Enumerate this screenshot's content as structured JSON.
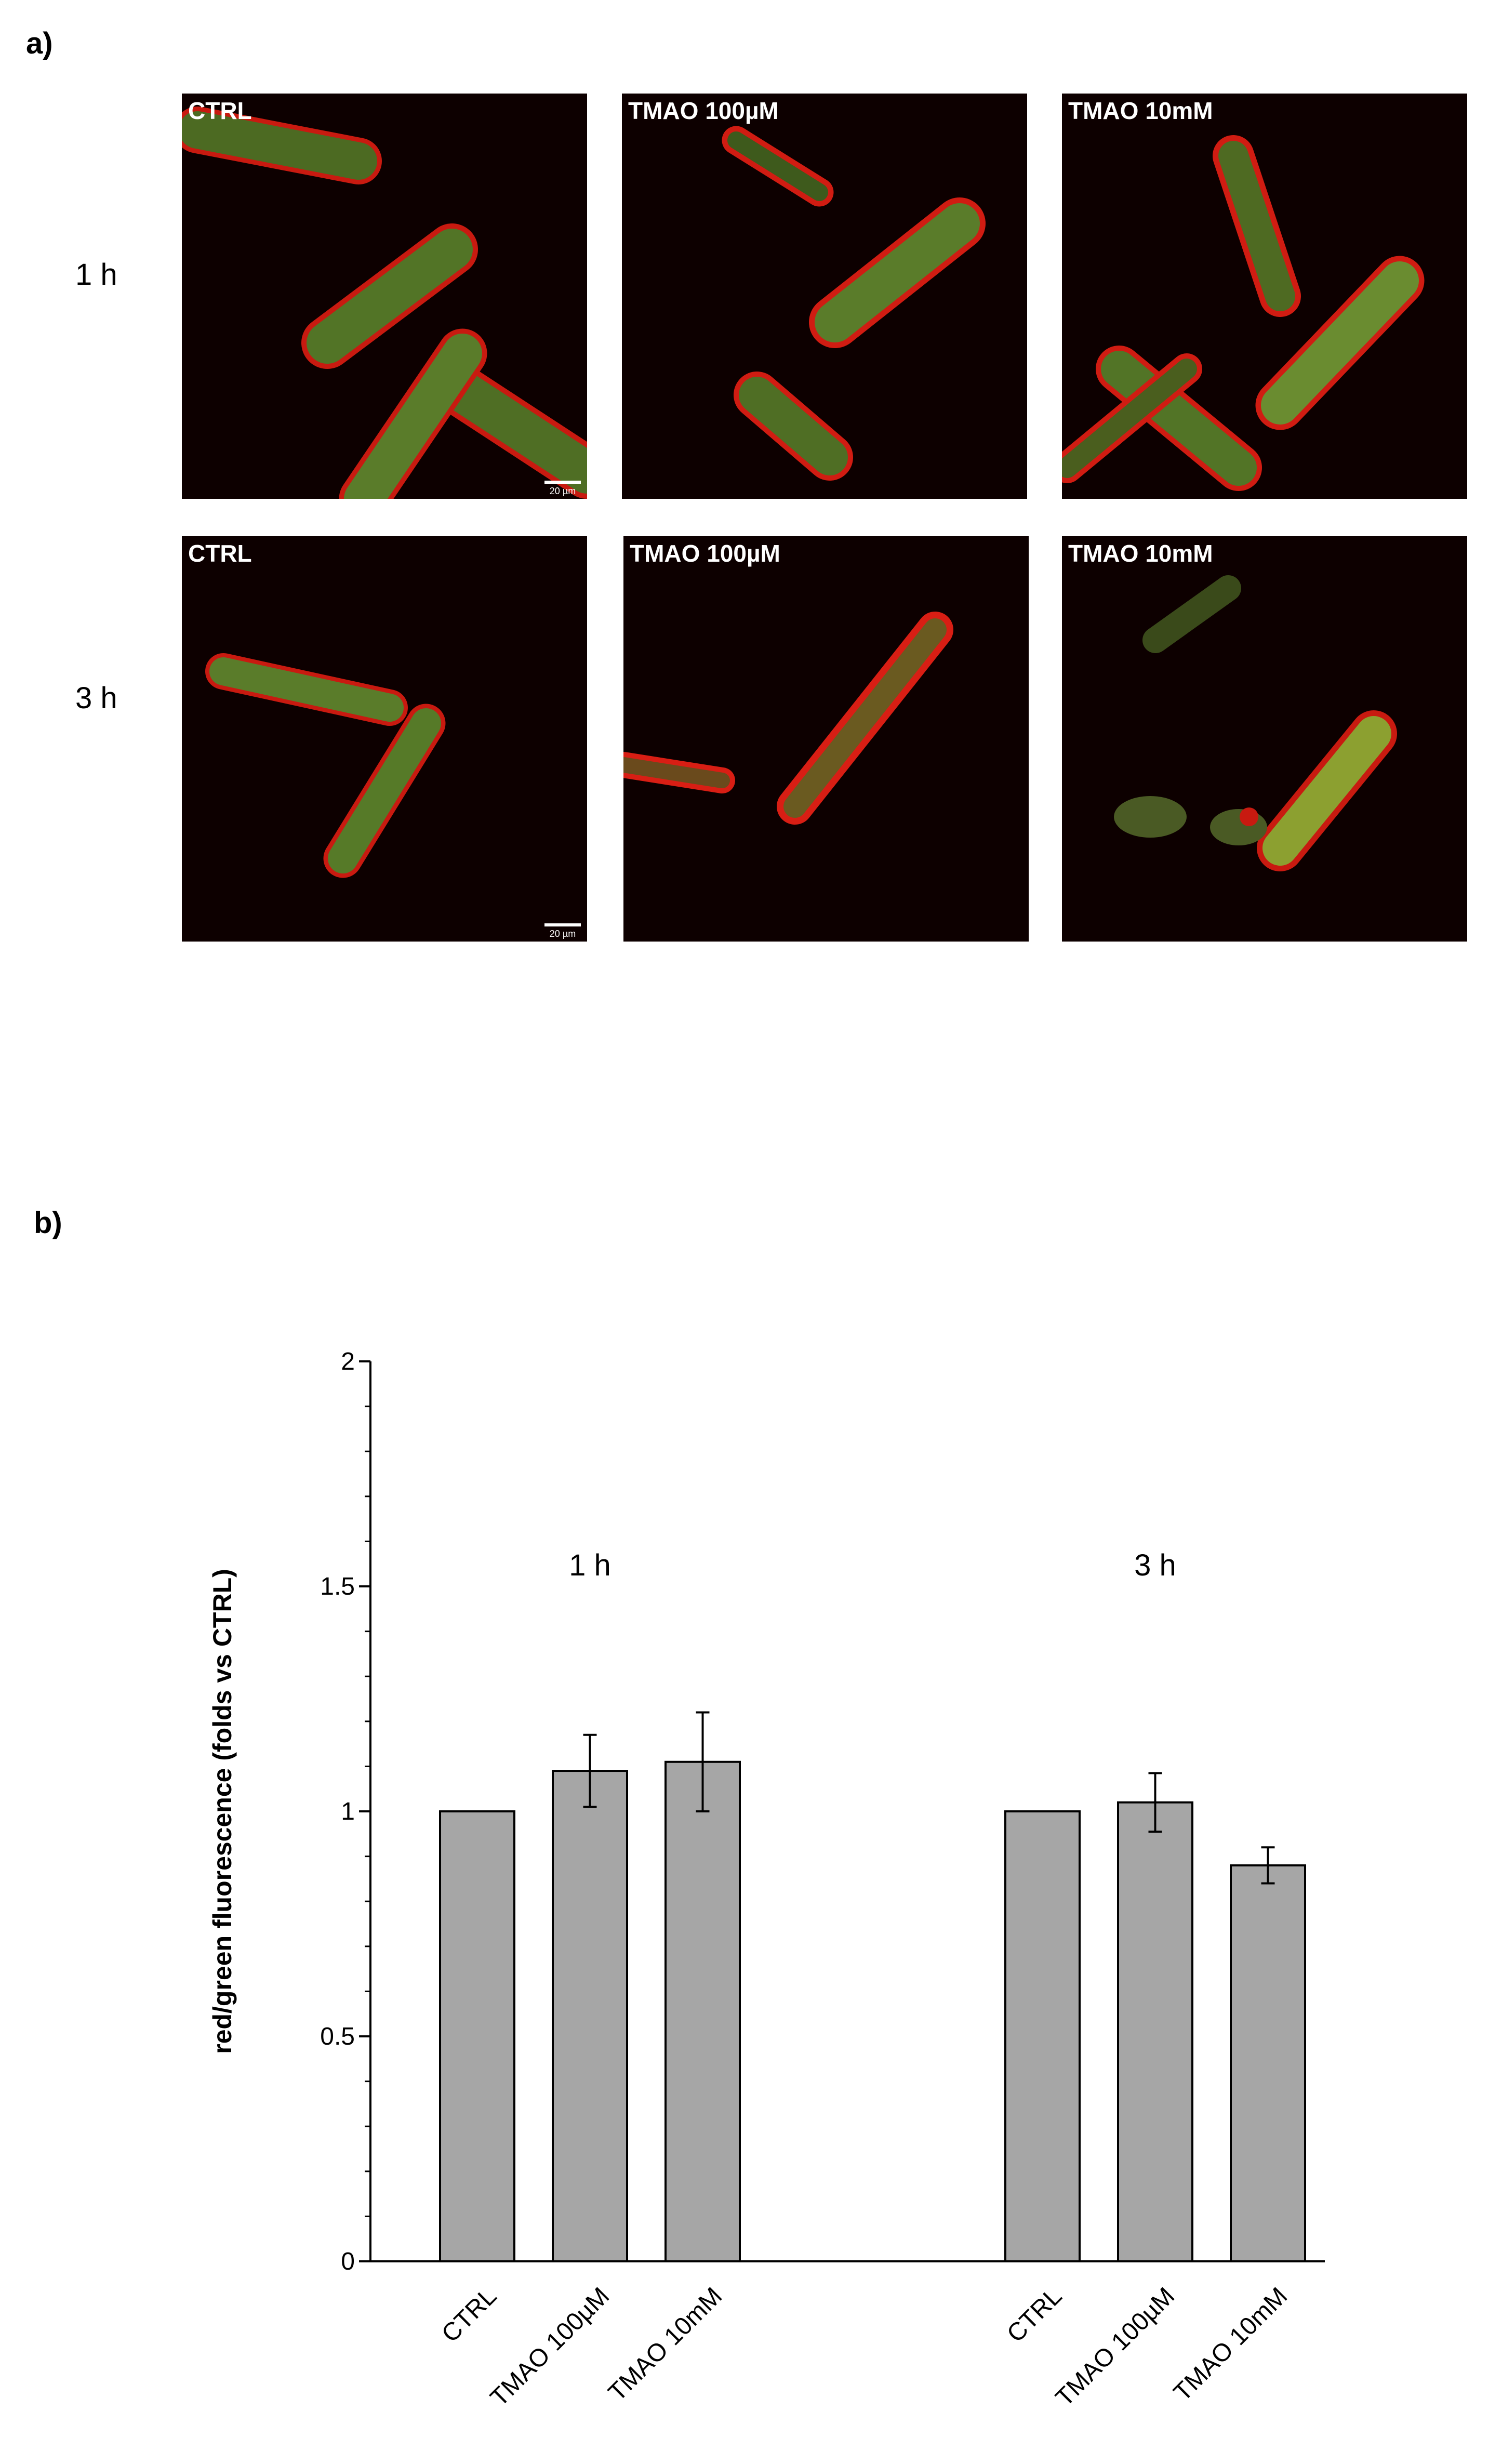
{
  "panel_a": {
    "letter": "a)",
    "rows": [
      {
        "label": "1 h",
        "scale_bar": "20 µm"
      },
      {
        "label": "3 h",
        "scale_bar": "20 µm"
      }
    ],
    "panel_titles": [
      "CTRL",
      "TMAO 100µM",
      "TMAO 10mM"
    ]
  },
  "panel_b": {
    "letter": "b)"
  },
  "chart_data": {
    "type": "bar",
    "groups": [
      {
        "label": "1 h",
        "categories": [
          "CTRL",
          "TMAO 100µM",
          "TMAO 10mM"
        ],
        "values": [
          1.0,
          1.09,
          1.11
        ],
        "errors": [
          0.0,
          0.08,
          0.11
        ]
      },
      {
        "label": "3 h",
        "categories": [
          "CTRL",
          "TMAO 100µM",
          "TMAO 10mM"
        ],
        "values": [
          1.0,
          1.02,
          0.88
        ],
        "errors": [
          0.0,
          0.065,
          0.04
        ]
      }
    ],
    "ylabel": "red/green fluorescence (folds vs CTRL)",
    "xlabel": "",
    "ylim": [
      0,
      2
    ],
    "yticks": [
      "0",
      "0.5",
      "1",
      "1.5",
      "2"
    ],
    "grid": false,
    "bar_color": "#a6a6a6"
  }
}
